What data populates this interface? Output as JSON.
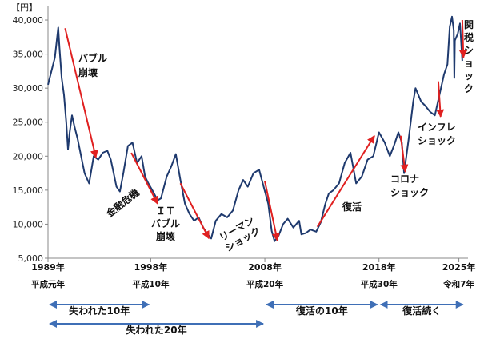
{
  "chart_data": {
    "type": "line",
    "unit_label": "【円】",
    "ylim": [
      5000,
      42000
    ],
    "yticks": [
      {
        "v": 5000,
        "label": "5,000"
      },
      {
        "v": 10000,
        "label": "10,000"
      },
      {
        "v": 15000,
        "label": "15,000"
      },
      {
        "v": 20000,
        "label": "20,000"
      },
      {
        "v": 25000,
        "label": "25,000"
      },
      {
        "v": 30000,
        "label": "30,000"
      },
      {
        "v": 35000,
        "label": "35,000"
      },
      {
        "v": 40000,
        "label": "40,000"
      }
    ],
    "xlim": [
      1989,
      2025.8
    ],
    "xticks": [
      {
        "year": 1989,
        "label": "1989年",
        "era": "平成元年"
      },
      {
        "year": 1998,
        "label": "1998年",
        "era": "平成10年"
      },
      {
        "year": 2008,
        "label": "2008年",
        "era": "平成20年"
      },
      {
        "year": 2018,
        "label": "2018年",
        "era": "平成30年"
      },
      {
        "year": 2025,
        "label": "2025年",
        "era": "令和7年"
      }
    ],
    "grid": false,
    "line_color": "#1f3a6e",
    "arrow_color": "#e02020",
    "series": [
      {
        "x": [
          1989.0,
          1989.3,
          1989.6,
          1989.9,
          1990.0,
          1990.2,
          1990.4,
          1990.6,
          1990.75,
          1990.9,
          1991.1,
          1991.3,
          1991.6,
          1991.9,
          1992.2,
          1992.6,
          1993.0,
          1993.4,
          1993.8,
          1994.2,
          1994.5,
          1995.0,
          1995.3,
          1995.6,
          1996.0,
          1996.4,
          1996.8,
          1997.2,
          1997.5,
          1997.8,
          1998.2,
          1998.6,
          1998.9,
          1999.4,
          1999.8,
          2000.2,
          2000.6,
          2001.0,
          2001.4,
          2001.8,
          2002.2,
          2002.6,
          2003.0,
          2003.3,
          2003.7,
          2004.2,
          2004.7,
          2005.2,
          2005.7,
          2006.1,
          2006.5,
          2007.0,
          2007.5,
          2007.9,
          2008.3,
          2008.6,
          2008.85,
          2009.2,
          2009.6,
          2010.0,
          2010.5,
          2011.0,
          2011.2,
          2011.6,
          2012.0,
          2012.5,
          2012.9,
          2013.3,
          2013.6,
          2014.0,
          2014.5,
          2015.0,
          2015.5,
          2016.0,
          2016.5,
          2017.0,
          2017.5,
          2018.0,
          2018.5,
          2018.95,
          2019.3,
          2019.7,
          2020.0,
          2020.2,
          2020.6,
          2021.0,
          2021.2,
          2021.7,
          2022.0,
          2022.5,
          2022.9,
          2023.3,
          2023.7,
          2024.0,
          2024.2,
          2024.4,
          2024.55,
          2024.6,
          2024.65,
          2024.9,
          2025.1,
          2025.3
        ],
        "values": [
          30500,
          32500,
          34500,
          38900,
          36000,
          31500,
          29000,
          25000,
          21000,
          23500,
          26000,
          24500,
          22500,
          20000,
          17500,
          16000,
          20000,
          19500,
          20500,
          20800,
          19500,
          15500,
          14800,
          17500,
          21500,
          22000,
          19000,
          20000,
          17000,
          16000,
          14800,
          13500,
          13800,
          17000,
          18500,
          20300,
          16500,
          13000,
          11500,
          10500,
          11000,
          9500,
          8500,
          7900,
          10500,
          11500,
          11000,
          12000,
          15000,
          16500,
          15500,
          17500,
          18000,
          15500,
          13000,
          9000,
          7500,
          8300,
          10000,
          10800,
          9500,
          10500,
          8500,
          8700,
          9200,
          8900,
          10300,
          13000,
          14500,
          15000,
          16000,
          19000,
          20500,
          16000,
          17000,
          19500,
          20000,
          23500,
          22000,
          20000,
          21500,
          23500,
          22000,
          17500,
          22500,
          28000,
          30000,
          28000,
          27500,
          26500,
          26000,
          29000,
          32000,
          33500,
          39000,
          40500,
          38500,
          31500,
          37000,
          38000,
          39500,
          34000
        ]
      }
    ],
    "annotations": [
      {
        "lines": [
          "バブル",
          "崩壊"
        ]
      },
      {
        "lines": [
          "金融危機"
        ]
      },
      {
        "lines": [
          "ＩＴ",
          "バブル",
          "崩壊"
        ]
      },
      {
        "lines": [
          "リーマン",
          "ショック"
        ]
      },
      {
        "lines": [
          "復活"
        ]
      },
      {
        "lines": [
          "コロナ",
          "ショック"
        ]
      },
      {
        "lines": [
          "インフレ",
          "ショック"
        ]
      },
      {
        "lines": [
          "関",
          "税",
          "シ",
          "ョ",
          "ッ",
          "ク"
        ]
      }
    ],
    "arrows": [
      {
        "from": [
          1990.5,
          38800
        ],
        "to": [
          1993.2,
          19800
        ]
      },
      {
        "from": [
          1996.3,
          20500
        ],
        "to": [
          1998.6,
          13000
        ]
      },
      {
        "from": [
          2000.6,
          16000
        ],
        "to": [
          2003.1,
          7900
        ]
      },
      {
        "from": [
          2008.0,
          16300
        ],
        "to": [
          2009.1,
          7600
        ]
      },
      {
        "from": [
          2012.6,
          9600
        ],
        "to": [
          2017.6,
          23000
        ]
      },
      {
        "from": [
          2019.9,
          23000
        ],
        "to": [
          2020.3,
          17700
        ]
      },
      {
        "from": [
          2023.2,
          31000
        ],
        "to": [
          2023.4,
          25800
        ]
      },
      {
        "from": [
          2025.3,
          40000
        ],
        "to": [
          2025.4,
          34500
        ]
      }
    ],
    "periods": [
      {
        "label": "失われた10年",
        "start": 1989,
        "end": 1998
      },
      {
        "label": "失われた20年",
        "start": 1989,
        "end": 2008
      },
      {
        "label": "復活の10年",
        "start": 2008,
        "end": 2018
      },
      {
        "label": "復活続く",
        "start": 2018,
        "end": 2025.5
      }
    ],
    "period_color": "#3f6fb6"
  }
}
